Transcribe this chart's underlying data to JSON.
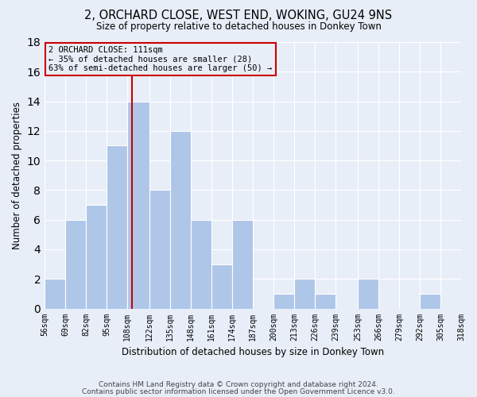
{
  "title": "2, ORCHARD CLOSE, WEST END, WOKING, GU24 9NS",
  "subtitle": "Size of property relative to detached houses in Donkey Town",
  "xlabel": "Distribution of detached houses by size in Donkey Town",
  "ylabel": "Number of detached properties",
  "footer1": "Contains HM Land Registry data © Crown copyright and database right 2024.",
  "footer2": "Contains public sector information licensed under the Open Government Licence v3.0.",
  "annotation_line1": "2 ORCHARD CLOSE: 111sqm",
  "annotation_line2": "← 35% of detached houses are smaller (28)",
  "annotation_line3": "63% of semi-detached houses are larger (50) →",
  "property_size": 111,
  "bin_edges": [
    56,
    69,
    82,
    95,
    108,
    122,
    135,
    148,
    161,
    174,
    187,
    200,
    213,
    226,
    239,
    253,
    266,
    279,
    292,
    305,
    318
  ],
  "bin_labels": [
    "56sqm",
    "69sqm",
    "82sqm",
    "95sqm",
    "108sqm",
    "122sqm",
    "135sqm",
    "148sqm",
    "161sqm",
    "174sqm",
    "187sqm",
    "200sqm",
    "213sqm",
    "226sqm",
    "239sqm",
    "253sqm",
    "266sqm",
    "279sqm",
    "292sqm",
    "305sqm",
    "318sqm"
  ],
  "counts": [
    2,
    6,
    7,
    11,
    14,
    8,
    12,
    6,
    3,
    6,
    0,
    1,
    2,
    1,
    0,
    2,
    0,
    0,
    1,
    0
  ],
  "bar_color": "#aec6e8",
  "vline_x": 111,
  "vline_color": "#cc0000",
  "box_edge_color": "#cc0000",
  "background_color": "#e8eef8",
  "grid_color": "#ffffff",
  "ylim": [
    0,
    18
  ],
  "yticks": [
    0,
    2,
    4,
    6,
    8,
    10,
    12,
    14,
    16,
    18
  ]
}
